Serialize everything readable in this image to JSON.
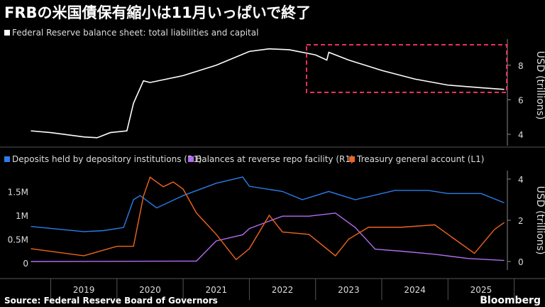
{
  "title": "FRBの米国債保有縮小は11月いっぱいで終了",
  "source": "Source: Federal Reserve Board of Governors",
  "brand": "Bloomberg",
  "chart_data": [
    {
      "type": "line",
      "title": "Federal Reserve balance sheet: total liabilities and capital",
      "ylabel": "USD (trillions)",
      "ylim": [
        3.5,
        9.5
      ],
      "yticks": [
        4,
        6,
        8
      ],
      "color": "#ffffff",
      "highlight_box_color": "#e8305a",
      "x": [
        2018.7,
        2019.0,
        2019.5,
        2019.7,
        2019.9,
        2020.15,
        2020.25,
        2020.4,
        2020.5,
        2021.0,
        2021.5,
        2022.0,
        2022.3,
        2022.6,
        2023.0,
        2023.17,
        2023.2,
        2023.5,
        2024.0,
        2024.5,
        2025.0,
        2025.5,
        2025.85
      ],
      "values": [
        4.2,
        4.1,
        3.85,
        3.8,
        4.1,
        4.2,
        5.8,
        7.1,
        7.0,
        7.4,
        8.0,
        8.8,
        8.95,
        8.9,
        8.6,
        8.3,
        8.75,
        8.3,
        7.7,
        7.2,
        6.85,
        6.7,
        6.6
      ]
    },
    {
      "type": "line",
      "ylabel": "USD (trillions)",
      "ylim_left": [
        0,
        1.8
      ],
      "yticks_left": [
        "0",
        "0.5M",
        "1M",
        "1.5M"
      ],
      "ylim_right": [
        0,
        4.5
      ],
      "yticks_right": [
        0,
        2,
        4
      ],
      "xticks": [
        "2019",
        "2020",
        "2021",
        "2022",
        "2023",
        "2024",
        "2025"
      ],
      "series": [
        {
          "name": "Deposits held by depository institutions (R1)",
          "axis": "right",
          "color": "#2b7de9",
          "x": [
            2018.7,
            2019.5,
            2019.8,
            2020.1,
            2020.25,
            2020.35,
            2020.6,
            2021.0,
            2021.5,
            2021.9,
            2022.0,
            2022.5,
            2022.8,
            2023.2,
            2023.6,
            2024.2,
            2024.7,
            2025.0,
            2025.5,
            2025.85
          ],
          "values": [
            1.7,
            1.45,
            1.5,
            1.65,
            3.0,
            3.2,
            2.6,
            3.2,
            3.8,
            4.1,
            3.65,
            3.4,
            3.0,
            3.4,
            3.0,
            3.45,
            3.45,
            3.3,
            3.3,
            2.85
          ]
        },
        {
          "name": "Balances at reverse repo facility (R1)",
          "axis": "right",
          "color": "#b36cf0",
          "x": [
            2018.7,
            2021.2,
            2021.5,
            2021.9,
            2022.0,
            2022.5,
            2022.9,
            2023.3,
            2023.6,
            2023.9,
            2024.3,
            2024.8,
            2025.3,
            2025.85
          ],
          "values": [
            0,
            0.02,
            1.0,
            1.3,
            1.6,
            2.2,
            2.2,
            2.35,
            1.65,
            0.6,
            0.5,
            0.35,
            0.15,
            0.05
          ]
        },
        {
          "name": "Treasury general account (L1)",
          "axis": "left",
          "color": "#f0641e",
          "x": [
            2018.7,
            2019.5,
            2020.0,
            2020.25,
            2020.4,
            2020.5,
            2020.7,
            2020.85,
            2021.0,
            2021.2,
            2021.5,
            2021.8,
            2022.0,
            2022.3,
            2022.5,
            2022.9,
            2023.3,
            2023.5,
            2023.8,
            2024.3,
            2024.8,
            2025.1,
            2025.4,
            2025.7,
            2025.85
          ],
          "values": [
            0.3,
            0.15,
            0.35,
            0.35,
            1.4,
            1.8,
            1.6,
            1.7,
            1.55,
            1.05,
            0.6,
            0.07,
            0.3,
            1.0,
            0.65,
            0.6,
            0.15,
            0.5,
            0.75,
            0.75,
            0.8,
            0.5,
            0.2,
            0.7,
            0.85
          ]
        }
      ]
    }
  ]
}
